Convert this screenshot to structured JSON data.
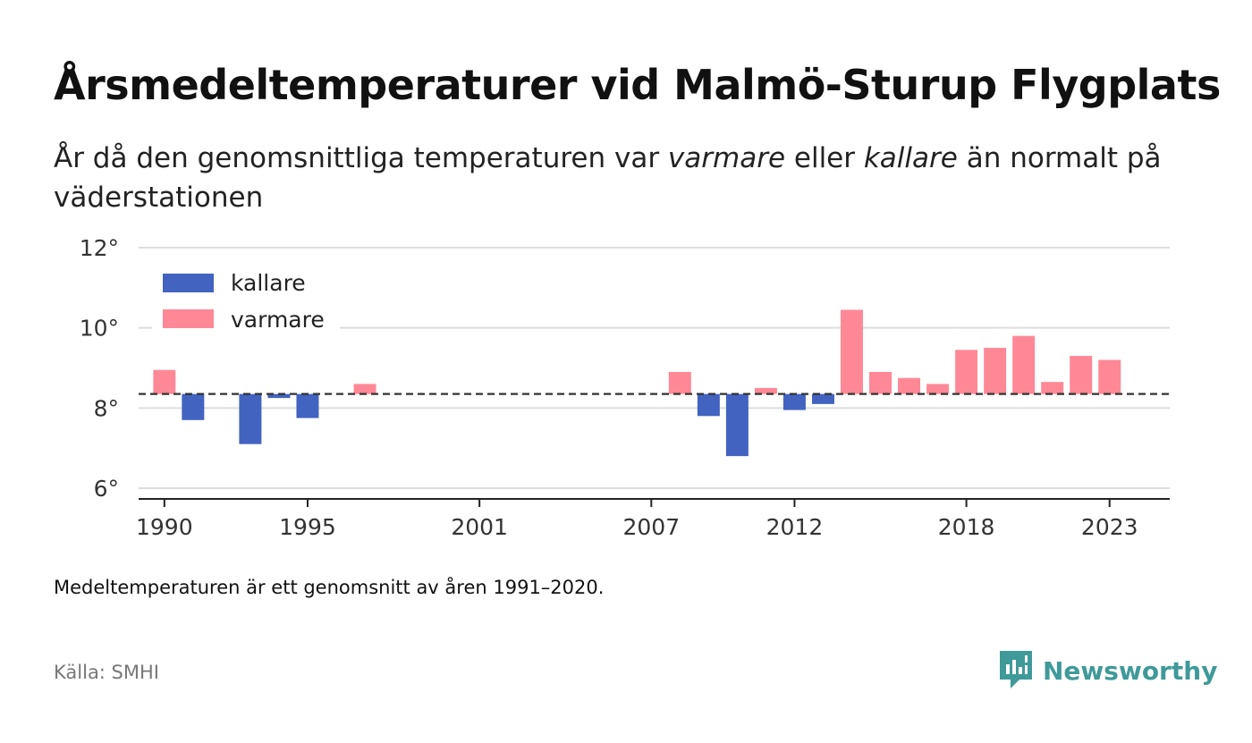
{
  "header": {
    "title": "Årsmedeltemperaturer vid Malmö-Sturup Flygplats",
    "subtitle_parts": [
      "År då den genomsnittliga temperaturen var ",
      "varmare",
      " eller ",
      "kallare",
      " än normalt på väderstationen"
    ]
  },
  "footer": {
    "note": "Medeltemperaturen är ett genomsnitt av åren 1991–2020.",
    "source": "Källa: SMHI",
    "brand": "Newsworthy"
  },
  "colors": {
    "colder": "#4263c0",
    "warmer": "#ff8896",
    "brand": "#3f9a99"
  },
  "chart_data": {
    "type": "bar",
    "baseline": 8.35,
    "ylim": [
      6,
      12
    ],
    "xlim": [
      1989.1,
      2025.1
    ],
    "yticks": [
      6,
      8,
      10,
      12
    ],
    "ytick_labels": [
      "6°",
      "8°",
      "10°",
      "12°"
    ],
    "xticks": [
      1990,
      1995,
      2001,
      2007,
      2012,
      2018,
      2023
    ],
    "xtick_labels": [
      "1990",
      "1995",
      "2001",
      "2007",
      "2012",
      "2018",
      "2023"
    ],
    "legend": {
      "position": "top-left",
      "items": [
        {
          "label": "kallare",
          "color": "#4263c0"
        },
        {
          "label": "varmare",
          "color": "#ff8896"
        }
      ]
    },
    "grid": true,
    "baseline_style": "dashed",
    "data": [
      {
        "year": 1990,
        "value": 8.95
      },
      {
        "year": 1991,
        "value": 7.7
      },
      {
        "year": 1993,
        "value": 7.1
      },
      {
        "year": 1994,
        "value": 8.25
      },
      {
        "year": 1995,
        "value": 7.75
      },
      {
        "year": 1997,
        "value": 8.6
      },
      {
        "year": 2008,
        "value": 8.9
      },
      {
        "year": 2009,
        "value": 7.8
      },
      {
        "year": 2010,
        "value": 6.8
      },
      {
        "year": 2011,
        "value": 8.5
      },
      {
        "year": 2012,
        "value": 7.95
      },
      {
        "year": 2013,
        "value": 8.1
      },
      {
        "year": 2014,
        "value": 10.45
      },
      {
        "year": 2015,
        "value": 8.9
      },
      {
        "year": 2016,
        "value": 8.75
      },
      {
        "year": 2017,
        "value": 8.6
      },
      {
        "year": 2018,
        "value": 9.45
      },
      {
        "year": 2019,
        "value": 9.5
      },
      {
        "year": 2020,
        "value": 9.8
      },
      {
        "year": 2021,
        "value": 8.65
      },
      {
        "year": 2022,
        "value": 9.3
      },
      {
        "year": 2023,
        "value": 9.2
      }
    ]
  }
}
